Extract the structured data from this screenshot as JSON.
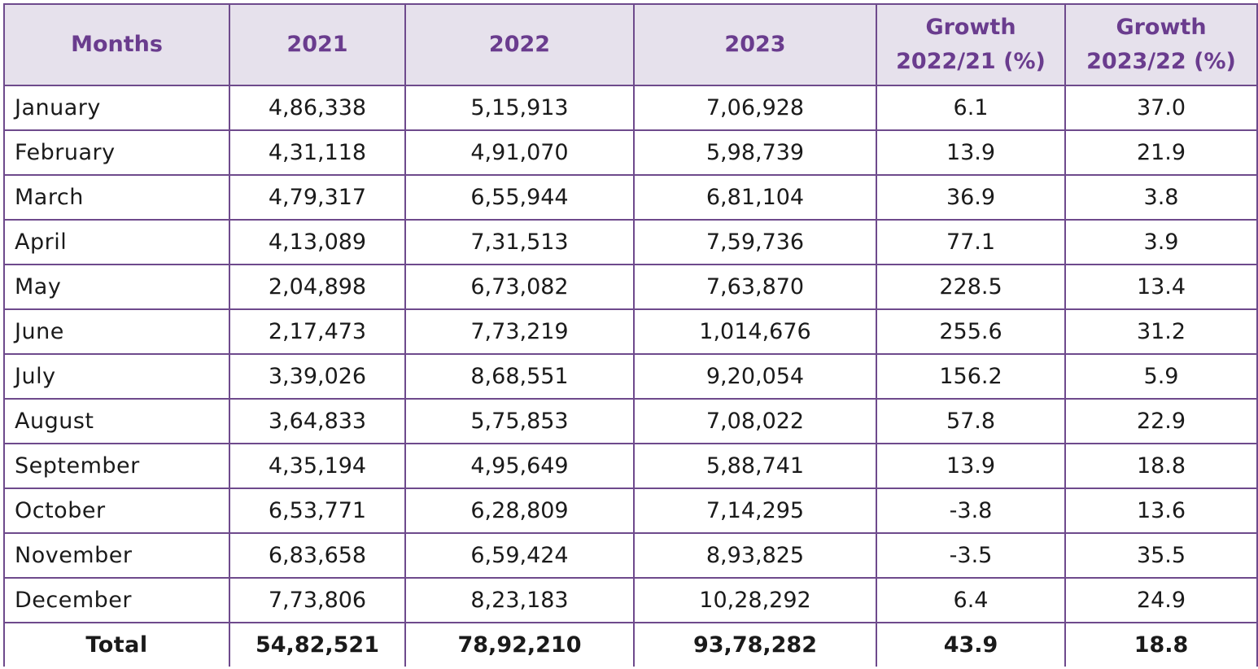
{
  "table": {
    "headers": {
      "months": "Months",
      "y2021": "2021",
      "y2022": "2022",
      "y2023": "2023",
      "growth1_line1": "Growth",
      "growth1_line2": "2022/21 (%)",
      "growth2_line1": "Growth",
      "growth2_line2": "2023/22 (%)"
    },
    "rows": [
      {
        "month": "January",
        "y2021": "4,86,338",
        "y2022": "5,15,913",
        "y2023": "7,06,928",
        "g1": "6.1",
        "g2": "37.0"
      },
      {
        "month": "February",
        "y2021": "4,31,118",
        "y2022": "4,91,070",
        "y2023": "5,98,739",
        "g1": "13.9",
        "g2": "21.9"
      },
      {
        "month": "March",
        "y2021": "4,79,317",
        "y2022": "6,55,944",
        "y2023": "6,81,104",
        "g1": "36.9",
        "g2": "3.8"
      },
      {
        "month": "April",
        "y2021": "4,13,089",
        "y2022": "7,31,513",
        "y2023": "7,59,736",
        "g1": "77.1",
        "g2": "3.9"
      },
      {
        "month": "May",
        "y2021": "2,04,898",
        "y2022": "6,73,082",
        "y2023": "7,63,870",
        "g1": "228.5",
        "g2": "13.4"
      },
      {
        "month": "June",
        "y2021": "2,17,473",
        "y2022": "7,73,219",
        "y2023": "1,014,676",
        "g1": "255.6",
        "g2": "31.2"
      },
      {
        "month": "July",
        "y2021": "3,39,026",
        "y2022": "8,68,551",
        "y2023": "9,20,054",
        "g1": "156.2",
        "g2": "5.9"
      },
      {
        "month": "August",
        "y2021": "3,64,833",
        "y2022": "5,75,853",
        "y2023": "7,08,022",
        "g1": "57.8",
        "g2": "22.9"
      },
      {
        "month": "September",
        "y2021": "4,35,194",
        "y2022": "4,95,649",
        "y2023": "5,88,741",
        "g1": "13.9",
        "g2": "18.8"
      },
      {
        "month": "October",
        "y2021": "6,53,771",
        "y2022": "6,28,809",
        "y2023": "7,14,295",
        "g1": "-3.8",
        "g2": "13.6"
      },
      {
        "month": "November",
        "y2021": "6,83,658",
        "y2022": "6,59,424",
        "y2023": "8,93,825",
        "g1": "-3.5",
        "g2": "35.5"
      },
      {
        "month": "December",
        "y2021": "7,73,806",
        "y2022": "8,23,183",
        "y2023": "10,28,292",
        "g1": "6.4",
        "g2": "24.9"
      }
    ],
    "total": {
      "month": "Total",
      "y2021": "54,82,521",
      "y2022": "78,92,210",
      "y2023": "93,78,282",
      "g1": "43.9",
      "g2": "18.8"
    }
  },
  "colors": {
    "header_bg": "#e6e1ec",
    "header_text": "#6a3c8e",
    "border": "#6e4a8c",
    "body_text": "#1a1a1a"
  }
}
